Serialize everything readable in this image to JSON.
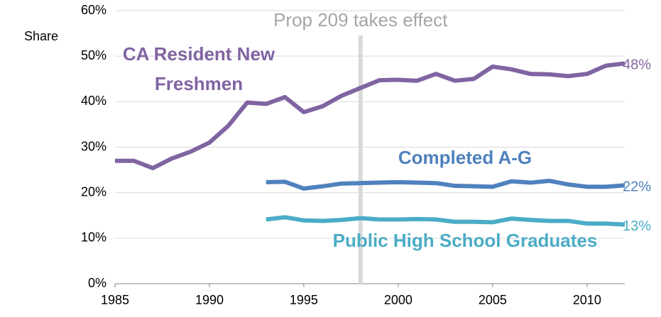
{
  "chart_data": {
    "type": "line",
    "y_label": "Share",
    "annotation": {
      "text": "Prop 209 takes effect",
      "x": 1998
    },
    "x": [
      1985,
      1986,
      1987,
      1988,
      1989,
      1990,
      1991,
      1992,
      1993,
      1994,
      1995,
      1996,
      1997,
      1998,
      1999,
      2000,
      2001,
      2002,
      2003,
      2004,
      2005,
      2006,
      2007,
      2008,
      2009,
      2010,
      2011,
      2012
    ],
    "xlim": [
      1985,
      2012
    ],
    "xticks": [
      1985,
      1990,
      1995,
      2000,
      2005,
      2010
    ],
    "ylim": [
      0,
      60
    ],
    "yticks": [
      {
        "value": 0,
        "label": "0%"
      },
      {
        "value": 10,
        "label": "10%"
      },
      {
        "value": 20,
        "label": "20%"
      },
      {
        "value": 30,
        "label": "30%"
      },
      {
        "value": 40,
        "label": "40%"
      },
      {
        "value": 50,
        "label": "50%"
      },
      {
        "value": 60,
        "label": "60%"
      }
    ],
    "grid": true,
    "series": [
      {
        "name": "CA Resident New Freshmen",
        "color": "#8064a2",
        "values": [
          27,
          27,
          25.4,
          27.5,
          29,
          31,
          34.7,
          39.8,
          39.5,
          41,
          37.7,
          39,
          41.3,
          43,
          44.7,
          44.8,
          44.6,
          46.1,
          44.6,
          45,
          47.7,
          47.1,
          46.1,
          46,
          45.6,
          46.1,
          47.9,
          48.4
        ],
        "value_labels": [
          null,
          null,
          null,
          null,
          null,
          null,
          null,
          null,
          null,
          null,
          null,
          null,
          null,
          null,
          null,
          null,
          null,
          null,
          null,
          null,
          null,
          null,
          null,
          null,
          null,
          null,
          null,
          "48%"
        ]
      },
      {
        "name": "Completed A-G",
        "color": "#4f81bd",
        "values": [
          null,
          null,
          null,
          null,
          null,
          null,
          null,
          null,
          22.3,
          22.4,
          20.9,
          21.4,
          22,
          22.1,
          22.2,
          22.3,
          22.2,
          22.1,
          21.5,
          21.4,
          21.3,
          22.5,
          22.2,
          22.6,
          21.8,
          21.3,
          21.3,
          21.6
        ],
        "value_labels": [
          null,
          null,
          null,
          null,
          null,
          null,
          null,
          null,
          null,
          null,
          null,
          null,
          null,
          null,
          null,
          null,
          null,
          null,
          null,
          null,
          null,
          null,
          null,
          null,
          null,
          null,
          null,
          "22%"
        ]
      },
      {
        "name": "Public High School Graduates",
        "color": "#4bacc6",
        "values": [
          null,
          null,
          null,
          null,
          null,
          null,
          null,
          null,
          14.1,
          14.6,
          13.9,
          13.8,
          14,
          14.4,
          14.1,
          14.1,
          14.2,
          14.1,
          13.6,
          13.6,
          13.5,
          14.3,
          14,
          13.8,
          13.8,
          13.2,
          13.2,
          13
        ],
        "value_labels": [
          null,
          null,
          null,
          null,
          null,
          null,
          null,
          null,
          null,
          null,
          null,
          null,
          null,
          null,
          null,
          null,
          null,
          null,
          null,
          null,
          null,
          null,
          null,
          null,
          null,
          null,
          null,
          "13%"
        ]
      }
    ]
  }
}
